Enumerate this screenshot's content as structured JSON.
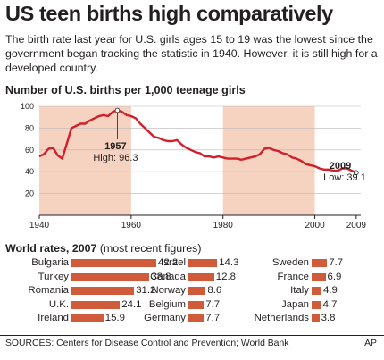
{
  "title": "US teen births high comparatively",
  "intro": "The birth rate last year for U.S. girls ages 15 to 19 was the lowest since the government began tracking the statistic in 1940. However, it is still high for a developed country.",
  "chart_data": [
    {
      "type": "line",
      "title": "Number of U.S. births per 1,000 teenage girls",
      "xlim": [
        1940,
        2010
      ],
      "ylim": [
        0,
        100
      ],
      "y_ticks": [
        20,
        40,
        60,
        80,
        100
      ],
      "x_ticks": [
        "1940",
        "1960",
        "1980",
        "2000",
        "2009"
      ],
      "x_tick_values": [
        1940,
        1960,
        1980,
        2000,
        2009
      ],
      "shaded_ranges": [
        [
          1940,
          1960
        ],
        [
          1980,
          2000
        ]
      ],
      "line_color": "#d11f2b",
      "shade_color": "#f6d2c0",
      "x": [
        1940,
        1941,
        1942,
        1943,
        1944,
        1945,
        1946,
        1947,
        1948,
        1949,
        1950,
        1951,
        1952,
        1953,
        1954,
        1955,
        1956,
        1957,
        1958,
        1959,
        1960,
        1961,
        1962,
        1963,
        1964,
        1965,
        1966,
        1967,
        1968,
        1969,
        1970,
        1971,
        1972,
        1973,
        1974,
        1975,
        1976,
        1977,
        1978,
        1979,
        1980,
        1981,
        1982,
        1983,
        1984,
        1985,
        1986,
        1987,
        1988,
        1989,
        1990,
        1991,
        1992,
        1993,
        1994,
        1995,
        1996,
        1997,
        1998,
        1999,
        2000,
        2001,
        2002,
        2003,
        2004,
        2005,
        2006,
        2007,
        2008,
        2009
      ],
      "y": [
        54,
        56,
        61,
        62,
        55,
        52,
        66,
        80,
        82,
        84,
        84,
        87,
        89,
        91,
        92,
        91,
        95,
        96.3,
        95,
        92,
        91,
        89,
        84,
        80,
        76,
        72,
        71,
        69,
        68,
        68,
        69,
        65,
        62,
        60,
        58,
        57,
        54,
        54,
        53,
        54,
        53,
        52,
        52,
        52,
        51,
        52,
        53,
        54,
        56,
        61,
        62,
        60,
        59,
        57,
        56,
        53,
        52,
        50,
        47,
        46,
        45,
        43,
        42,
        42,
        41,
        41,
        43,
        43,
        41,
        39.1
      ],
      "annotations": [
        {
          "year": "1957",
          "text": "High: 96.3",
          "x": 1957,
          "y": 96.3
        },
        {
          "year": "2009",
          "text": "Low: 39.1",
          "x": 2009,
          "y": 39.1
        }
      ]
    },
    {
      "type": "bar",
      "title": "World rates, 2007",
      "subtitle": "(most recent figures)",
      "bar_color": "#cf5b3b",
      "scale_max": 42.2,
      "categories": [
        "Bulgaria",
        "Turkey",
        "Romania",
        "U.K.",
        "Ireland",
        "Israel",
        "Canada",
        "Norway",
        "Belgium",
        "Germany",
        "Sweden",
        "France",
        "Italy",
        "Japan",
        "Netherlands"
      ],
      "values": [
        42.2,
        38.8,
        31.2,
        24.1,
        15.9,
        14.3,
        12.8,
        8.6,
        7.7,
        7.7,
        7.7,
        6.9,
        4.9,
        4.7,
        3.8
      ],
      "value_labels": [
        "42.2",
        "38.8",
        "31.2",
        "24.1",
        "15.9",
        "14.3",
        "12.8",
        "8.6",
        "7.7",
        "7.7",
        "7.7",
        "6.9",
        "4.9",
        "4.7",
        "3.8"
      ]
    }
  ],
  "sources": "SOURCES: Centers for Disease Control and Prevention; World Bank",
  "credit": "AP"
}
